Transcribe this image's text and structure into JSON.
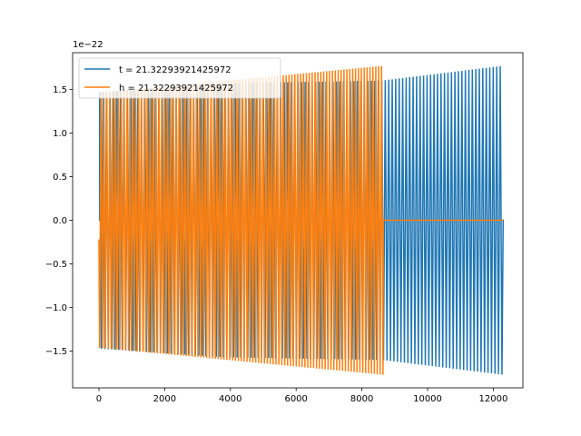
{
  "chart_data": {
    "type": "line",
    "title": "",
    "xlabel": "",
    "ylabel": "",
    "offset_text": "1e−22",
    "xlim": [
      -800,
      12900
    ],
    "ylim": [
      -1.92,
      1.92
    ],
    "y_scale_exponent": -22,
    "grid": false,
    "legend_position": "upper left",
    "x_ticks": [
      0,
      2000,
      4000,
      6000,
      8000,
      10000,
      12000
    ],
    "x_tick_labels": [
      "0",
      "2000",
      "4000",
      "6000",
      "8000",
      "10000",
      "12000"
    ],
    "y_ticks": [
      -1.5,
      -1.0,
      -0.5,
      0.0,
      0.5,
      1.0,
      1.5
    ],
    "y_tick_labels": [
      "−1.5",
      "−1.0",
      "−0.5",
      "0.0",
      "0.5",
      "1.0",
      "1.5"
    ],
    "series": [
      {
        "name": "t = 21.32293921425972",
        "color": "#1f77b4",
        "description_points": {
          "x": [
            0,
            3800,
            8600,
            12300
          ],
          "amplitude": [
            1.47,
            1.57,
            1.6,
            1.77
          ],
          "zero_padding_start": [
            0,
            20
          ]
        }
      },
      {
        "name": "h = 21.32293921425972",
        "color": "#ff7f0e",
        "description_points": {
          "x": [
            0,
            8650,
            12300
          ],
          "amplitude": [
            1.46,
            1.77,
            0.0
          ],
          "first_value": -0.22
        }
      }
    ]
  }
}
